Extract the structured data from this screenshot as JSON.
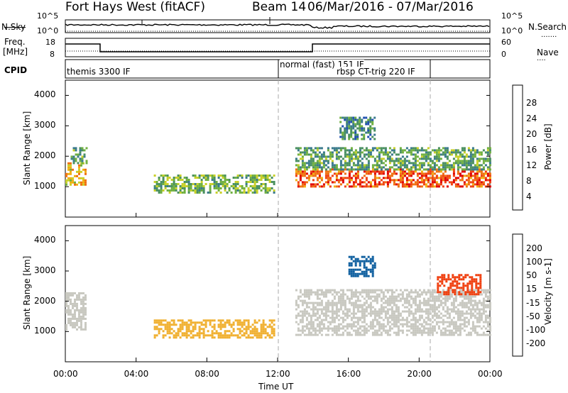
{
  "header": {
    "title": "Fort Hays West (fitACF)",
    "beam": "Beam 14",
    "date_range": "06/Mar/2016 - 07/Mar/2016"
  },
  "panels": {
    "nsky_label": "N.Sky",
    "nsearch_label": "N.Search",
    "freq_label_line1": "Freq.",
    "freq_label_line2": "[MHz]",
    "nave_label": "Nave",
    "cpid_label": "CPID",
    "nsky_ticks": [
      "10^5",
      "10^0"
    ],
    "nsearch_ticks": [
      "10^5",
      "10^0"
    ],
    "freq_ticks": [
      "18",
      "8"
    ],
    "nave_ticks": [
      "60",
      "0"
    ],
    "cpid_texts": [
      "themis 3300 IF",
      "normal (fast) 151 IF",
      "rbsp CT-trig 220 IF"
    ]
  },
  "axes": {
    "ylabel": "Slant Range [km]",
    "xlabel": "Time UT",
    "yticks": [
      "4000",
      "3000",
      "2000",
      "1000"
    ],
    "xticks": [
      "00:00",
      "04:00",
      "08:00",
      "12:00",
      "16:00",
      "20:00",
      "00:00"
    ]
  },
  "colorbars": {
    "power": {
      "label": "Power [dB]",
      "ticks": [
        "28",
        "24",
        "20",
        "16",
        "12",
        "8",
        "4"
      ],
      "colors": [
        "#0000ff",
        "#2050b0",
        "#3a7a8c",
        "#4a9060",
        "#70b040",
        "#c8d028",
        "#f0b010",
        "#f07010",
        "#f04010",
        "#e00000"
      ]
    },
    "velocity": {
      "label": "Velocity [m s-1]",
      "ticks": [
        "200",
        "100",
        "50",
        "15",
        "-15",
        "-50",
        "-100",
        "-200"
      ],
      "colors": [
        "#1030c0",
        "#1060a0",
        "#1a8c60",
        "#50c040",
        "#c8c8c0",
        "#f0b030",
        "#f08020",
        "#f04010",
        "#e00000"
      ]
    }
  },
  "chart_data": [
    {
      "type": "heatmap",
      "name": "power",
      "x_range_hours": [
        0,
        24
      ],
      "ylim": [
        0,
        4500
      ],
      "value_label": "Power [dB]",
      "grid": false,
      "regions": [
        {
          "t": [
            0.0,
            1.1
          ],
          "r": [
            1100,
            1800
          ],
          "value": 20
        },
        {
          "t": [
            0.3,
            1.2
          ],
          "r": [
            1800,
            2300
          ],
          "value": 12
        },
        {
          "t": [
            5.0,
            11.8
          ],
          "r": [
            800,
            1400
          ],
          "value": 14
        },
        {
          "t": [
            13.0,
            24.0
          ],
          "r": [
            1000,
            1600
          ],
          "value": 26
        },
        {
          "t": [
            13.0,
            24.0
          ],
          "r": [
            1600,
            2300
          ],
          "value": 12
        },
        {
          "t": [
            15.5,
            17.5
          ],
          "r": [
            2600,
            3300
          ],
          "value": 10
        }
      ]
    },
    {
      "type": "heatmap",
      "name": "velocity",
      "x_range_hours": [
        0,
        24
      ],
      "ylim": [
        0,
        4500
      ],
      "value_label": "Velocity [m s-1]",
      "grid": false,
      "regions": [
        {
          "t": [
            0.0,
            1.2
          ],
          "r": [
            1100,
            2300
          ],
          "value": 0
        },
        {
          "t": [
            5.0,
            11.8
          ],
          "r": [
            800,
            1400
          ],
          "value": -50
        },
        {
          "t": [
            13.0,
            24.0
          ],
          "r": [
            900,
            2400
          ],
          "value": 0
        },
        {
          "t": [
            21.0,
            23.5
          ],
          "r": [
            2200,
            2900
          ],
          "value": -150
        },
        {
          "t": [
            16.0,
            17.5
          ],
          "r": [
            2800,
            3500
          ],
          "value": 150
        }
      ]
    }
  ]
}
